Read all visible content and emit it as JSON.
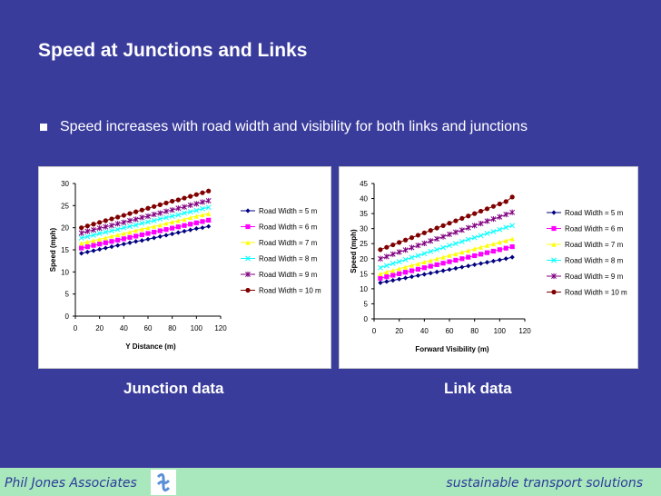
{
  "slide": {
    "title": "Speed at Junctions and Links",
    "bullet": "Speed increases with road width and visibility for both links and junctions"
  },
  "captions": {
    "junction": "Junction data",
    "link": "Link data"
  },
  "footer": {
    "left": "Phil Jones Associates",
    "right": "sustainable transport solutions"
  },
  "colors": {
    "background": "#3a3c9c",
    "footer": "#a9e7bd",
    "footer_text": "#2b3a9a",
    "series": [
      "#000080",
      "#ff00ff",
      "#ffff00",
      "#00ffff",
      "#800080",
      "#800000"
    ]
  },
  "legend_markers": [
    "diamond",
    "square",
    "triangle",
    "x",
    "star",
    "circle"
  ],
  "chart_data": [
    {
      "id": "junction",
      "type": "line",
      "xlabel": "Y Distance (m)",
      "ylabel": "Speed (mph)",
      "xlim": [
        0,
        120
      ],
      "ylim": [
        0,
        30
      ],
      "xticks": [
        0,
        20,
        40,
        60,
        80,
        100,
        120
      ],
      "yticks": [
        0,
        5,
        10,
        15,
        20,
        25,
        30
      ],
      "legend": "right",
      "x": [
        5,
        10,
        15,
        20,
        25,
        30,
        35,
        40,
        45,
        50,
        55,
        60,
        65,
        70,
        75,
        80,
        85,
        90,
        95,
        100,
        105,
        110
      ],
      "series": [
        {
          "name": "Road Width = 5 m",
          "values": [
            14.2,
            14.5,
            14.8,
            15.1,
            15.4,
            15.7,
            16.0,
            16.3,
            16.6,
            16.9,
            17.1,
            17.4,
            17.7,
            18.0,
            18.3,
            18.6,
            18.9,
            19.2,
            19.5,
            19.8,
            20.0,
            20.3
          ]
        },
        {
          "name": "Road Width = 6 m",
          "values": [
            15.4,
            15.7,
            16.0,
            16.3,
            16.6,
            16.9,
            17.2,
            17.5,
            17.8,
            18.1,
            18.4,
            18.7,
            19.0,
            19.3,
            19.6,
            19.9,
            20.2,
            20.5,
            20.8,
            21.1,
            21.4,
            21.7
          ]
        },
        {
          "name": "Road Width = 7 m",
          "values": [
            16.5,
            16.8,
            17.1,
            17.4,
            17.7,
            18.1,
            18.4,
            18.7,
            19.0,
            19.4,
            19.7,
            20.0,
            20.3,
            20.6,
            21.0,
            21.3,
            21.6,
            21.9,
            22.3,
            22.6,
            22.9,
            23.2
          ]
        },
        {
          "name": "Road Width = 8 m",
          "values": [
            17.7,
            18.0,
            18.3,
            18.7,
            19.0,
            19.3,
            19.6,
            20.0,
            20.3,
            20.6,
            21.0,
            21.3,
            21.6,
            22.0,
            22.3,
            22.6,
            22.9,
            23.3,
            23.6,
            23.9,
            24.3,
            24.6
          ]
        },
        {
          "name": "Road Width = 9 m",
          "values": [
            18.8,
            19.2,
            19.5,
            19.9,
            20.2,
            20.5,
            20.9,
            21.2,
            21.6,
            21.9,
            22.3,
            22.6,
            23.0,
            23.3,
            23.7,
            24.0,
            24.4,
            24.7,
            25.1,
            25.4,
            25.8,
            26.1
          ]
        },
        {
          "name": "Road Width = 10 m",
          "values": [
            20.0,
            20.4,
            20.8,
            21.2,
            21.6,
            22.0,
            22.4,
            22.8,
            23.2,
            23.6,
            24.0,
            24.4,
            24.8,
            25.2,
            25.6,
            26.0,
            26.3,
            26.7,
            27.1,
            27.5,
            27.9,
            28.3
          ]
        }
      ]
    },
    {
      "id": "link",
      "type": "line",
      "xlabel": "Forward Visibility (m)",
      "ylabel": "Speed (mph)",
      "xlim": [
        0,
        120
      ],
      "ylim": [
        0,
        45
      ],
      "xticks": [
        0,
        20,
        40,
        60,
        80,
        100,
        120
      ],
      "yticks": [
        0,
        5,
        10,
        15,
        20,
        25,
        30,
        35,
        40,
        45
      ],
      "legend": "right",
      "x": [
        5,
        10,
        15,
        20,
        25,
        30,
        35,
        40,
        45,
        50,
        55,
        60,
        65,
        70,
        75,
        80,
        85,
        90,
        95,
        100,
        105,
        110
      ],
      "series": [
        {
          "name": "Road Width = 5 m",
          "values": [
            12.0,
            12.4,
            12.8,
            13.2,
            13.6,
            14.0,
            14.4,
            14.8,
            15.2,
            15.6,
            16.0,
            16.4,
            16.8,
            17.2,
            17.6,
            18.0,
            18.4,
            18.8,
            19.2,
            19.6,
            20.0,
            20.5
          ]
        },
        {
          "name": "Road Width = 6 m",
          "values": [
            13.5,
            14.0,
            14.5,
            15.0,
            15.5,
            16.0,
            16.5,
            17.0,
            17.5,
            18.0,
            18.5,
            19.0,
            19.5,
            20.0,
            20.5,
            21.0,
            21.5,
            22.0,
            22.5,
            23.0,
            23.5,
            24.0
          ]
        },
        {
          "name": "Road Width = 7 m",
          "values": [
            15.0,
            15.6,
            16.1,
            16.7,
            17.2,
            17.8,
            18.3,
            18.9,
            19.4,
            20.0,
            20.5,
            21.1,
            21.6,
            22.2,
            22.7,
            23.3,
            23.8,
            24.4,
            24.9,
            25.5,
            26.0,
            26.6
          ]
        },
        {
          "name": "Road Width = 8 m",
          "values": [
            17.0,
            17.7,
            18.4,
            19.0,
            19.7,
            20.4,
            21.0,
            21.7,
            22.4,
            23.0,
            23.7,
            24.4,
            25.0,
            25.7,
            26.4,
            27.0,
            27.7,
            28.4,
            29.0,
            29.7,
            30.4,
            31.0
          ]
        },
        {
          "name": "Road Width = 9 m",
          "values": [
            20.0,
            20.7,
            21.5,
            22.2,
            22.9,
            23.7,
            24.4,
            25.1,
            25.9,
            26.6,
            27.3,
            28.1,
            28.8,
            29.5,
            30.3,
            31.0,
            31.7,
            32.5,
            33.2,
            33.9,
            34.7,
            35.4
          ]
        },
        {
          "name": "Road Width = 10 m",
          "values": [
            23.0,
            23.8,
            24.6,
            25.4,
            26.2,
            27.0,
            27.8,
            28.6,
            29.4,
            30.2,
            31.0,
            31.8,
            32.6,
            33.4,
            34.2,
            35.0,
            35.8,
            36.6,
            37.4,
            38.2,
            39.0,
            40.5
          ]
        }
      ]
    }
  ]
}
